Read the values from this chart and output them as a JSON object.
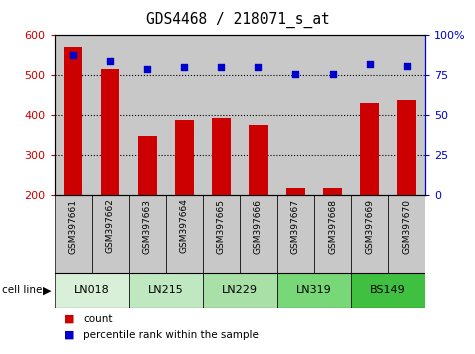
{
  "title": "GDS4468 / 218071_s_at",
  "samples": [
    "GSM397661",
    "GSM397662",
    "GSM397663",
    "GSM397664",
    "GSM397665",
    "GSM397666",
    "GSM397667",
    "GSM397668",
    "GSM397669",
    "GSM397670"
  ],
  "counts": [
    570,
    515,
    348,
    388,
    393,
    375,
    218,
    218,
    430,
    437
  ],
  "percentile": [
    88,
    84,
    79,
    80,
    80,
    80,
    76,
    76,
    82,
    81
  ],
  "cell_lines": [
    {
      "name": "LN018",
      "span": [
        0,
        2
      ],
      "color": "#d8f0d8"
    },
    {
      "name": "LN215",
      "span": [
        2,
        4
      ],
      "color": "#c0e8c0"
    },
    {
      "name": "LN229",
      "span": [
        4,
        6
      ],
      "color": "#a8e0a8"
    },
    {
      "name": "LN319",
      "span": [
        6,
        8
      ],
      "color": "#78d878"
    },
    {
      "name": "BS149",
      "span": [
        8,
        10
      ],
      "color": "#40c040"
    }
  ],
  "bar_color": "#cc0000",
  "dot_color": "#0000cc",
  "ylim_left": [
    200,
    600
  ],
  "ylim_right": [
    0,
    100
  ],
  "yticks_left": [
    200,
    300,
    400,
    500,
    600
  ],
  "yticks_right": [
    0,
    25,
    50,
    75,
    100
  ],
  "bg_color": "white",
  "sample_bg": "#c8c8c8",
  "bar_width": 0.5,
  "left_tick_color": "#cc0000",
  "right_tick_color": "#0000cc"
}
